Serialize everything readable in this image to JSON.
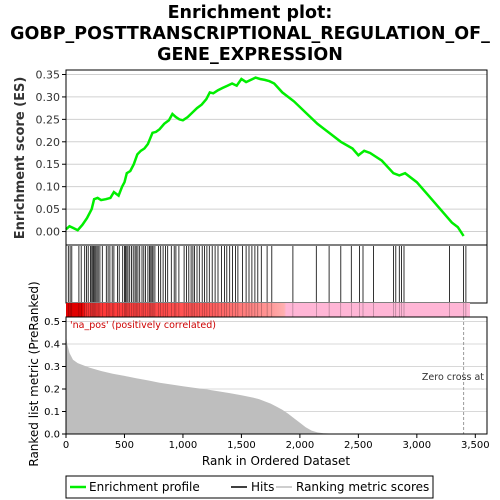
{
  "chart_data": [
    {
      "type": "line",
      "title_lines": [
        "Enrichment plot:",
        "GOBP_POSTTRANSCRIPTIONAL_REGULATION_OF_",
        "GENE_EXPRESSION"
      ],
      "ylabel": "Enrichment score (ES)",
      "ylim": [
        -0.03,
        0.36
      ],
      "xlim": [
        0,
        3600
      ],
      "yticks": [
        "0.35",
        "0.30",
        "0.25",
        "0.20",
        "0.15",
        "0.10",
        "0.05",
        "0.00"
      ],
      "grid": true,
      "series": [
        {
          "name": "Enrichment profile",
          "color": "#00ee00",
          "x": [
            0,
            30,
            60,
            100,
            140,
            180,
            220,
            240,
            270,
            300,
            340,
            380,
            410,
            450,
            480,
            500,
            520,
            550,
            580,
            610,
            640,
            670,
            700,
            740,
            770,
            800,
            840,
            880,
            910,
            940,
            970,
            1000,
            1040,
            1080,
            1120,
            1160,
            1200,
            1230,
            1260,
            1300,
            1340,
            1380,
            1420,
            1460,
            1500,
            1540,
            1580,
            1620,
            1660,
            1700,
            1740,
            1780,
            1850,
            1950,
            2050,
            2150,
            2250,
            2350,
            2450,
            2500,
            2550,
            2600,
            2700,
            2800,
            2850,
            2900,
            3000,
            3100,
            3200,
            3300,
            3350,
            3400
          ],
          "y": [
            0.005,
            0.012,
            0.008,
            0.003,
            0.015,
            0.03,
            0.05,
            0.072,
            0.075,
            0.07,
            0.072,
            0.075,
            0.088,
            0.08,
            0.1,
            0.11,
            0.13,
            0.135,
            0.15,
            0.172,
            0.18,
            0.185,
            0.195,
            0.22,
            0.222,
            0.228,
            0.24,
            0.248,
            0.262,
            0.255,
            0.25,
            0.248,
            0.255,
            0.265,
            0.275,
            0.283,
            0.295,
            0.31,
            0.308,
            0.315,
            0.32,
            0.325,
            0.33,
            0.325,
            0.34,
            0.333,
            0.338,
            0.343,
            0.34,
            0.338,
            0.335,
            0.33,
            0.31,
            0.29,
            0.265,
            0.24,
            0.22,
            0.2,
            0.185,
            0.17,
            0.18,
            0.175,
            0.158,
            0.13,
            0.125,
            0.13,
            0.11,
            0.08,
            0.05,
            0.02,
            0.01,
            -0.01
          ]
        }
      ]
    },
    {
      "type": "hits",
      "legend_label": "Hits",
      "xlim": [
        0,
        3600
      ],
      "hits": [
        20,
        35,
        50,
        110,
        130,
        160,
        175,
        190,
        210,
        215,
        225,
        235,
        245,
        255,
        265,
        275,
        290,
        310,
        345,
        360,
        375,
        395,
        410,
        440,
        455,
        485,
        500,
        510,
        520,
        530,
        545,
        560,
        575,
        590,
        600,
        615,
        630,
        650,
        665,
        680,
        700,
        715,
        725,
        735,
        745,
        760,
        790,
        810,
        830,
        850,
        870,
        900,
        925,
        940,
        965,
        1010,
        1030,
        1050,
        1070,
        1085,
        1100,
        1120,
        1140,
        1165,
        1185,
        1205,
        1225,
        1250,
        1275,
        1300,
        1330,
        1355,
        1375,
        1400,
        1425,
        1450,
        1470,
        1510,
        1540,
        1565,
        1590,
        1615,
        1640,
        1670,
        1720,
        1760,
        1940,
        2140,
        2250,
        2350,
        2440,
        2510,
        2540,
        2630,
        2800,
        2820,
        2850,
        2870,
        2890,
        3280,
        3400,
        3420
      ]
    },
    {
      "type": "area",
      "ylabel": "Ranked list metric (PreRanked)",
      "xlabel": "Rank in Ordered Dataset",
      "xlim": [
        0,
        3600
      ],
      "ylim": [
        0,
        0.52
      ],
      "yticks": [
        "0.5",
        "0.4",
        "0.3",
        "0.2",
        "0.1",
        "0.0"
      ],
      "xticks": [
        "0",
        "500",
        "1,000",
        "1,500",
        "2,000",
        "2,500",
        "3,000",
        "3,500"
      ],
      "annotations": {
        "positive": "'na_pos' (positively correlated)",
        "zero_cross": "Zero cross at"
      },
      "zero_cross_rank": 3400,
      "legend_label": "Ranking metric scores",
      "color": "#bebebe",
      "x": [
        0,
        10,
        30,
        60,
        100,
        150,
        200,
        300,
        400,
        500,
        600,
        700,
        800,
        900,
        1000,
        1100,
        1200,
        1300,
        1400,
        1500,
        1600,
        1650,
        1700,
        1750,
        1800,
        1850,
        1900,
        1950,
        2000,
        2050,
        2100,
        2150,
        2200,
        2300,
        2500,
        3000,
        3400
      ],
      "y": [
        0.44,
        0.4,
        0.36,
        0.33,
        0.315,
        0.305,
        0.295,
        0.28,
        0.268,
        0.258,
        0.248,
        0.238,
        0.228,
        0.22,
        0.212,
        0.205,
        0.198,
        0.19,
        0.182,
        0.172,
        0.162,
        0.155,
        0.145,
        0.135,
        0.122,
        0.108,
        0.09,
        0.07,
        0.05,
        0.03,
        0.015,
        0.007,
        0.003,
        0.001,
        0.0005,
        0.0002,
        0.0001
      ]
    }
  ],
  "legend": {
    "items": [
      "Enrichment profile",
      "Hits",
      "Ranking metric scores"
    ],
    "placement": "bottom"
  }
}
